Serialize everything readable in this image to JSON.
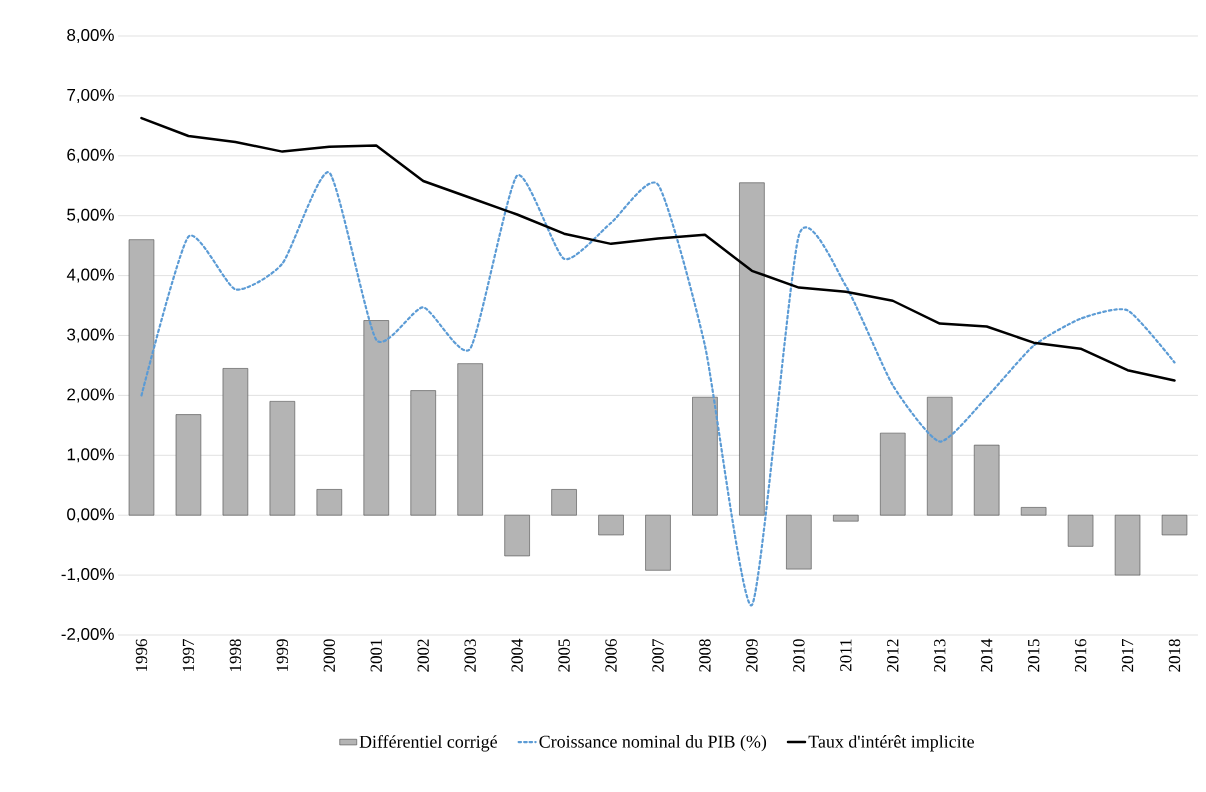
{
  "chart_data": {
    "type": "bar",
    "categories": [
      "1996",
      "1997",
      "1998",
      "1999",
      "2000",
      "2001",
      "2002",
      "2003",
      "2004",
      "2005",
      "2006",
      "2007",
      "2008",
      "2009",
      "2010",
      "2011",
      "2012",
      "2013",
      "2014",
      "2015",
      "2016",
      "2017",
      "2018"
    ],
    "series": [
      {
        "name": "Différentiel corrigé",
        "color": "#b4b4b4",
        "values": [
          4.6,
          1.68,
          2.45,
          1.9,
          0.43,
          3.25,
          2.08,
          2.53,
          -0.68,
          0.43,
          -0.33,
          -0.92,
          1.97,
          5.55,
          -0.9,
          -0.1,
          1.37,
          1.97,
          1.17,
          0.13,
          -0.52,
          -1.0,
          -0.33
        ]
      },
      {
        "name": "Croissance nominal du PIB (%)",
        "type": "line",
        "line_style": "dotted",
        "color": "#5b9bd5",
        "values": [
          2.0,
          4.65,
          3.77,
          4.2,
          5.72,
          2.93,
          3.47,
          2.78,
          5.67,
          4.28,
          4.88,
          5.52,
          2.83,
          -1.5,
          4.67,
          3.83,
          2.17,
          1.23,
          1.97,
          2.83,
          3.28,
          3.42,
          2.55
        ]
      },
      {
        "name": "Taux d'intérêt implicite",
        "type": "line",
        "line_style": "solid",
        "color": "#000000",
        "values": [
          6.63,
          6.33,
          6.23,
          6.07,
          6.15,
          6.17,
          5.58,
          5.3,
          5.02,
          4.7,
          4.53,
          4.62,
          4.68,
          4.08,
          3.8,
          3.73,
          3.58,
          3.2,
          3.15,
          2.88,
          2.78,
          2.42,
          2.25
        ]
      }
    ],
    "ylim": [
      -2,
      8
    ],
    "yticks": [
      {
        "value": -2,
        "label": "-2,00%"
      },
      {
        "value": -1,
        "label": "-1,00%"
      },
      {
        "value": 0,
        "label": "0,00%"
      },
      {
        "value": 1,
        "label": "1,00%"
      },
      {
        "value": 2,
        "label": "2,00%"
      },
      {
        "value": 3,
        "label": "3,00%"
      },
      {
        "value": 4,
        "label": "4,00%"
      },
      {
        "value": 5,
        "label": "5,00%"
      },
      {
        "value": 6,
        "label": "6,00%"
      },
      {
        "value": 7,
        "label": "7,00%"
      },
      {
        "value": 8,
        "label": "8,00%"
      }
    ],
    "grid": "y",
    "legend": "bottom",
    "marker": "none"
  }
}
